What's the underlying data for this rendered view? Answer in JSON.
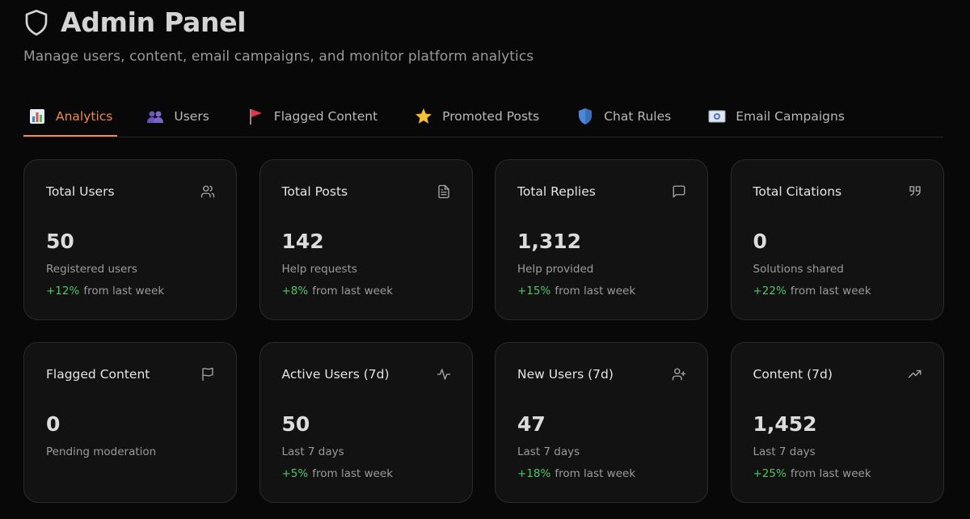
{
  "header": {
    "title": "Admin Panel",
    "subtitle": "Manage users, content, email campaigns, and monitor platform analytics",
    "icon": "shield-icon"
  },
  "tabs": [
    {
      "label": "Analytics",
      "icon": "bar-chart-emoji-icon",
      "active": true
    },
    {
      "label": "Users",
      "icon": "users-emoji-icon",
      "active": false
    },
    {
      "label": "Flagged Content",
      "icon": "red-flag-emoji-icon",
      "active": false
    },
    {
      "label": "Promoted Posts",
      "icon": "star-emoji-icon",
      "active": false
    },
    {
      "label": "Chat Rules",
      "icon": "shield-emoji-icon",
      "active": false
    },
    {
      "label": "Email Campaigns",
      "icon": "email-emoji-icon",
      "active": false
    }
  ],
  "cards": [
    {
      "title": "Total Users",
      "icon": "users-icon",
      "value": "50",
      "desc": "Registered users",
      "change": "+12%",
      "change_suffix": "from last week"
    },
    {
      "title": "Total Posts",
      "icon": "document-icon",
      "value": "142",
      "desc": "Help requests",
      "change": "+8%",
      "change_suffix": "from last week"
    },
    {
      "title": "Total Replies",
      "icon": "message-icon",
      "value": "1,312",
      "desc": "Help provided",
      "change": "+15%",
      "change_suffix": "from last week"
    },
    {
      "title": "Total Citations",
      "icon": "quote-icon",
      "value": "0",
      "desc": "Solutions shared",
      "change": "+22%",
      "change_suffix": "from last week"
    },
    {
      "title": "Flagged Content",
      "icon": "flag-icon",
      "value": "0",
      "desc": "Pending moderation",
      "change": "",
      "change_suffix": ""
    },
    {
      "title": "Active Users (7d)",
      "icon": "activity-icon",
      "value": "50",
      "desc": "Last 7 days",
      "change": "+5%",
      "change_suffix": "from last week"
    },
    {
      "title": "New Users (7d)",
      "icon": "user-plus-icon",
      "value": "47",
      "desc": "Last 7 days",
      "change": "+18%",
      "change_suffix": "from last week"
    },
    {
      "title": "Content (7d)",
      "icon": "trending-up-icon",
      "value": "1,452",
      "desc": "Last 7 days",
      "change": "+25%",
      "change_suffix": "from last week"
    }
  ],
  "colors": {
    "background": "#080808",
    "card": "#121212",
    "accent": "#f08a4b",
    "positive": "#52c36a"
  }
}
